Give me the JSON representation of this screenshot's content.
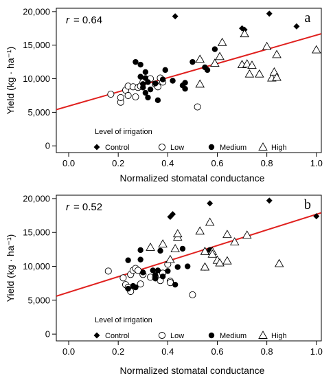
{
  "chart_data": [
    {
      "type": "scatter",
      "panel_label": "a",
      "annotation": "= 0.64",
      "r_symbol": "r",
      "xlabel": "Normalized stomatal conductance",
      "ylabel": "Yield (kg · ha⁻¹)",
      "xlim": [
        -0.05,
        1.02
      ],
      "ylim": [
        -1000,
        20500
      ],
      "xticks": [
        0.0,
        0.2,
        0.4,
        0.6,
        0.8,
        1.0
      ],
      "xtick_labels": [
        "0.0",
        "0.2",
        "0.4",
        "0.6",
        "0.8",
        "1.0"
      ],
      "yticks": [
        0,
        5000,
        10000,
        15000,
        20000
      ],
      "ytick_labels": [
        "0",
        "5,000",
        "10,000",
        "15,000",
        "20,000"
      ],
      "legend_title": "Level of irrigation",
      "legend_placement": "bottom-left",
      "grid": false,
      "regression_line": {
        "color": "#e0201e",
        "x": [
          -0.05,
          1.02
        ],
        "y": [
          5400,
          16700
        ]
      },
      "series": [
        {
          "name": "Control",
          "marker": "diamond-filled",
          "points": [
            [
              0.43,
              19300
            ],
            [
              0.7,
              17500
            ],
            [
              0.71,
              17300
            ],
            [
              0.81,
              19700
            ],
            [
              0.92,
              17800
            ]
          ]
        },
        {
          "name": "Low",
          "marker": "circle-open",
          "points": [
            [
              0.17,
              7700
            ],
            [
              0.21,
              6500
            ],
            [
              0.21,
              7200
            ],
            [
              0.23,
              8300
            ],
            [
              0.24,
              8900
            ],
            [
              0.24,
              7500
            ],
            [
              0.26,
              8800
            ],
            [
              0.27,
              7300
            ],
            [
              0.28,
              8700
            ],
            [
              0.29,
              8900
            ],
            [
              0.3,
              9500
            ],
            [
              0.33,
              10000
            ],
            [
              0.35,
              9200
            ],
            [
              0.36,
              8800
            ],
            [
              0.37,
              10100
            ],
            [
              0.38,
              9500
            ],
            [
              0.52,
              5800
            ]
          ]
        },
        {
          "name": "Medium",
          "marker": "circle-filled",
          "points": [
            [
              0.27,
              12500
            ],
            [
              0.29,
              12100
            ],
            [
              0.29,
              10300
            ],
            [
              0.3,
              9200
            ],
            [
              0.3,
              8700
            ],
            [
              0.31,
              11000
            ],
            [
              0.31,
              10100
            ],
            [
              0.31,
              7900
            ],
            [
              0.32,
              7200
            ],
            [
              0.32,
              9500
            ],
            [
              0.33,
              8400
            ],
            [
              0.35,
              9300
            ],
            [
              0.36,
              6800
            ],
            [
              0.38,
              9900
            ],
            [
              0.39,
              11300
            ],
            [
              0.42,
              9700
            ],
            [
              0.46,
              9000
            ],
            [
              0.47,
              8500
            ],
            [
              0.47,
              9400
            ],
            [
              0.5,
              12500
            ],
            [
              0.55,
              11700
            ],
            [
              0.56,
              11300
            ],
            [
              0.59,
              14400
            ]
          ]
        },
        {
          "name": "High",
          "marker": "triangle-open",
          "points": [
            [
              0.53,
              12900
            ],
            [
              0.53,
              9200
            ],
            [
              0.59,
              12300
            ],
            [
              0.61,
              13300
            ],
            [
              0.62,
              15400
            ],
            [
              0.7,
              12100
            ],
            [
              0.71,
              16700
            ],
            [
              0.72,
              12200
            ],
            [
              0.73,
              10700
            ],
            [
              0.74,
              12000
            ],
            [
              0.77,
              10700
            ],
            [
              0.8,
              14800
            ],
            [
              0.82,
              10100
            ],
            [
              0.83,
              11000
            ],
            [
              0.84,
              13600
            ],
            [
              0.84,
              10200
            ],
            [
              1.0,
              14300
            ]
          ]
        }
      ]
    },
    {
      "type": "scatter",
      "panel_label": "b",
      "annotation": "= 0.52",
      "r_symbol": "r",
      "xlabel": "Normalized stomatal conductance",
      "ylabel": "Yield (kg · ha⁻¹)",
      "xlim": [
        -0.05,
        1.02
      ],
      "ylim": [
        -1000,
        20500
      ],
      "xticks": [
        0.0,
        0.2,
        0.4,
        0.6,
        0.8,
        1.0
      ],
      "xtick_labels": [
        "0.0",
        "0.2",
        "0.4",
        "0.6",
        "0.8",
        "1.0"
      ],
      "yticks": [
        0,
        5000,
        10000,
        15000,
        20000
      ],
      "ytick_labels": [
        "0",
        "5,000",
        "10,000",
        "15,000",
        "20,000"
      ],
      "legend_title": "Level of irrigation",
      "legend_placement": "bottom-left",
      "grid": false,
      "regression_line": {
        "color": "#e0201e",
        "x": [
          -0.05,
          1.02
        ],
        "y": [
          5600,
          17900
        ]
      },
      "series": [
        {
          "name": "Control",
          "marker": "diamond-filled",
          "points": [
            [
              0.41,
              17300
            ],
            [
              0.42,
              17700
            ],
            [
              0.57,
              19300
            ],
            [
              0.81,
              19700
            ],
            [
              1.0,
              17400
            ]
          ]
        },
        {
          "name": "Low",
          "marker": "circle-open",
          "points": [
            [
              0.16,
              9300
            ],
            [
              0.22,
              8300
            ],
            [
              0.23,
              7300
            ],
            [
              0.24,
              6900
            ],
            [
              0.25,
              8800
            ],
            [
              0.25,
              6300
            ],
            [
              0.26,
              9400
            ],
            [
              0.27,
              9700
            ],
            [
              0.28,
              9400
            ],
            [
              0.29,
              7400
            ],
            [
              0.3,
              8800
            ],
            [
              0.33,
              8400
            ],
            [
              0.35,
              8400
            ],
            [
              0.37,
              7900
            ],
            [
              0.38,
              9000
            ],
            [
              0.4,
              10300
            ],
            [
              0.41,
              7800
            ],
            [
              0.41,
              7600
            ],
            [
              0.5,
              5800
            ]
          ]
        },
        {
          "name": "Medium",
          "marker": "circle-filled",
          "points": [
            [
              0.24,
              10900
            ],
            [
              0.24,
              6700
            ],
            [
              0.26,
              7100
            ],
            [
              0.27,
              6900
            ],
            [
              0.29,
              11000
            ],
            [
              0.29,
              12400
            ],
            [
              0.3,
              9100
            ],
            [
              0.34,
              9400
            ],
            [
              0.35,
              8700
            ],
            [
              0.35,
              8200
            ],
            [
              0.36,
              9400
            ],
            [
              0.37,
              12300
            ],
            [
              0.38,
              8500
            ],
            [
              0.4,
              9300
            ],
            [
              0.43,
              7300
            ],
            [
              0.44,
              9900
            ],
            [
              0.46,
              12600
            ],
            [
              0.48,
              10000
            ],
            [
              0.55,
              9800
            ],
            [
              0.57,
              12400
            ]
          ]
        },
        {
          "name": "High",
          "marker": "triangle-open",
          "points": [
            [
              0.33,
              12800
            ],
            [
              0.38,
              13300
            ],
            [
              0.41,
              11000
            ],
            [
              0.43,
              12600
            ],
            [
              0.44,
              14300
            ],
            [
              0.44,
              14800
            ],
            [
              0.53,
              15200
            ],
            [
              0.55,
              12200
            ],
            [
              0.55,
              9900
            ],
            [
              0.57,
              16500
            ],
            [
              0.58,
              12200
            ],
            [
              0.58,
              11800
            ],
            [
              0.6,
              10900
            ],
            [
              0.61,
              10500
            ],
            [
              0.64,
              14700
            ],
            [
              0.64,
              10800
            ],
            [
              0.67,
              13600
            ],
            [
              0.72,
              14600
            ],
            [
              0.85,
              10400
            ]
          ]
        }
      ]
    }
  ]
}
